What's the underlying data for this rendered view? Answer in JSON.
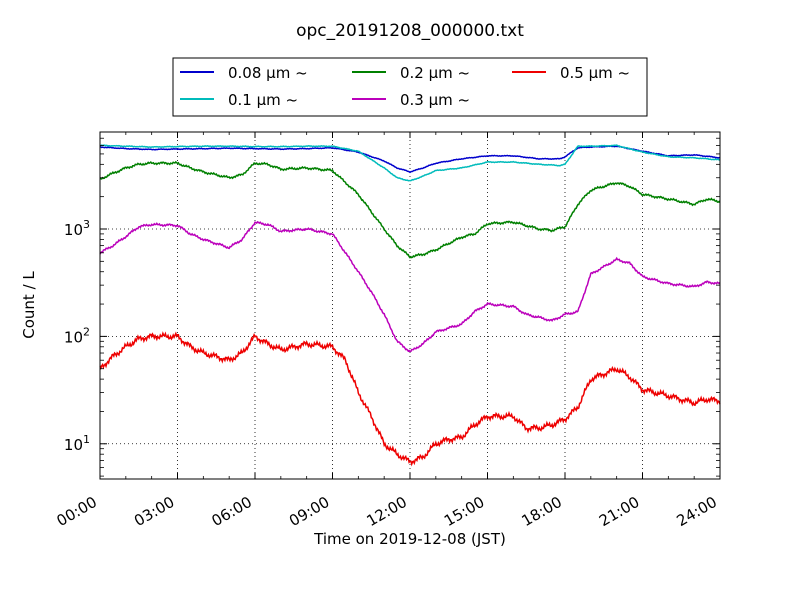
{
  "chart_data": {
    "type": "line",
    "title": "opc_20191208_000000.txt",
    "xlabel": "Time on 2019-12-08 (JST)",
    "ylabel": "Count / L",
    "xlim_hours": [
      0,
      24
    ],
    "ylim": [
      4.7,
      8000
    ],
    "yscale": "log",
    "grid": true,
    "legend_position": "top-center",
    "x_ticks": [
      {
        "hour": 0,
        "label": "00:00"
      },
      {
        "hour": 3,
        "label": "03:00"
      },
      {
        "hour": 6,
        "label": "06:00"
      },
      {
        "hour": 9,
        "label": "09:00"
      },
      {
        "hour": 12,
        "label": "12:00"
      },
      {
        "hour": 15,
        "label": "15:00"
      },
      {
        "hour": 18,
        "label": "18:00"
      },
      {
        "hour": 21,
        "label": "21:00"
      },
      {
        "hour": 24,
        "label": "24:00"
      }
    ],
    "y_ticks": [
      {
        "value": 10,
        "label_base": "10",
        "label_exp": "1"
      },
      {
        "value": 100,
        "label_base": "10",
        "label_exp": "2"
      },
      {
        "value": 1000,
        "label_base": "10",
        "label_exp": "3"
      }
    ],
    "series": [
      {
        "name": "0.08 μm ~",
        "color": "#0000cc",
        "x": [
          0,
          1,
          2,
          3,
          4,
          5,
          6,
          7,
          8,
          9,
          10,
          11,
          11.5,
          12,
          12.5,
          13,
          14,
          15,
          16,
          17,
          17.8,
          18,
          18.5,
          19,
          20,
          21,
          22,
          23,
          24
        ],
        "y": [
          5800,
          5600,
          5500,
          5550,
          5600,
          5650,
          5600,
          5550,
          5600,
          5700,
          5200,
          4300,
          3700,
          3400,
          3700,
          4100,
          4500,
          4800,
          4800,
          4500,
          4500,
          4700,
          5700,
          5800,
          5900,
          5300,
          4800,
          4900,
          4600
        ]
      },
      {
        "name": "0.1 μm ~",
        "color": "#00bbbb",
        "x": [
          0,
          1,
          2,
          3,
          4,
          5,
          6,
          7,
          8,
          9,
          10,
          11,
          11.5,
          12,
          12.5,
          13,
          14,
          15,
          16,
          17,
          17.8,
          18,
          18.5,
          19,
          20,
          21,
          22,
          23,
          24
        ],
        "y": [
          6000,
          5900,
          5800,
          5850,
          5900,
          5900,
          5850,
          5850,
          5900,
          5900,
          5300,
          3700,
          3000,
          2800,
          3100,
          3500,
          3700,
          4200,
          4200,
          4000,
          3900,
          4000,
          5900,
          5900,
          6000,
          5200,
          4700,
          4600,
          4400
        ]
      },
      {
        "name": "0.2 μm ~",
        "color": "#008000",
        "x": [
          0,
          0.5,
          1,
          1.5,
          2,
          3,
          3.5,
          4,
          5,
          5.5,
          6,
          6.5,
          7,
          8,
          9,
          10,
          11,
          11.5,
          12,
          12.5,
          13,
          14,
          14.5,
          15,
          16,
          17,
          17.5,
          18,
          18.5,
          19,
          20,
          20.5,
          21,
          22,
          23,
          23.5,
          24
        ],
        "y": [
          2900,
          3300,
          3700,
          4000,
          4100,
          4100,
          3700,
          3400,
          3000,
          3200,
          4100,
          4000,
          3600,
          3700,
          3500,
          2100,
          1000,
          700,
          550,
          580,
          640,
          840,
          900,
          1120,
          1160,
          1000,
          970,
          1050,
          1700,
          2300,
          2700,
          2500,
          2100,
          1900,
          1700,
          1900,
          1800
        ]
      },
      {
        "name": "0.3 μm ~",
        "color": "#bb00bb",
        "x": [
          0,
          0.5,
          1,
          1.5,
          2,
          3,
          3.5,
          4,
          5,
          5.5,
          6,
          6.5,
          7,
          8,
          9,
          10,
          10.5,
          11,
          11.5,
          12,
          12.5,
          13,
          14,
          14.5,
          15,
          16,
          16.5,
          17,
          17.5,
          18,
          18.5,
          19,
          20,
          20.5,
          21,
          22,
          23,
          23.5,
          24
        ],
        "y": [
          600,
          700,
          850,
          1050,
          1100,
          1080,
          900,
          800,
          670,
          800,
          1150,
          1100,
          950,
          1000,
          900,
          400,
          260,
          160,
          90,
          72,
          85,
          110,
          130,
          170,
          200,
          190,
          160,
          150,
          140,
          160,
          170,
          380,
          520,
          480,
          360,
          310,
          290,
          320,
          310
        ]
      },
      {
        "name": "0.5 μm ~",
        "color": "#ee0000",
        "x": [
          0,
          0.5,
          1,
          1.5,
          2,
          3,
          3.5,
          4,
          5,
          5.5,
          6,
          6.5,
          7,
          8,
          9,
          9.5,
          10,
          10.5,
          11,
          11.5,
          12,
          12.5,
          13,
          13.5,
          14,
          14.5,
          15,
          16,
          16.5,
          17,
          17.5,
          18,
          18.5,
          19,
          20,
          20.5,
          21,
          22,
          23,
          23.5,
          24
        ],
        "y": [
          50,
          65,
          80,
          95,
          100,
          100,
          80,
          70,
          60,
          70,
          100,
          85,
          75,
          85,
          80,
          60,
          30,
          18,
          10,
          8,
          6.8,
          7.5,
          10,
          11,
          11.5,
          15,
          18,
          18,
          14,
          14,
          15,
          17,
          22,
          40,
          50,
          42,
          32,
          28,
          24,
          26,
          25
        ]
      }
    ]
  }
}
